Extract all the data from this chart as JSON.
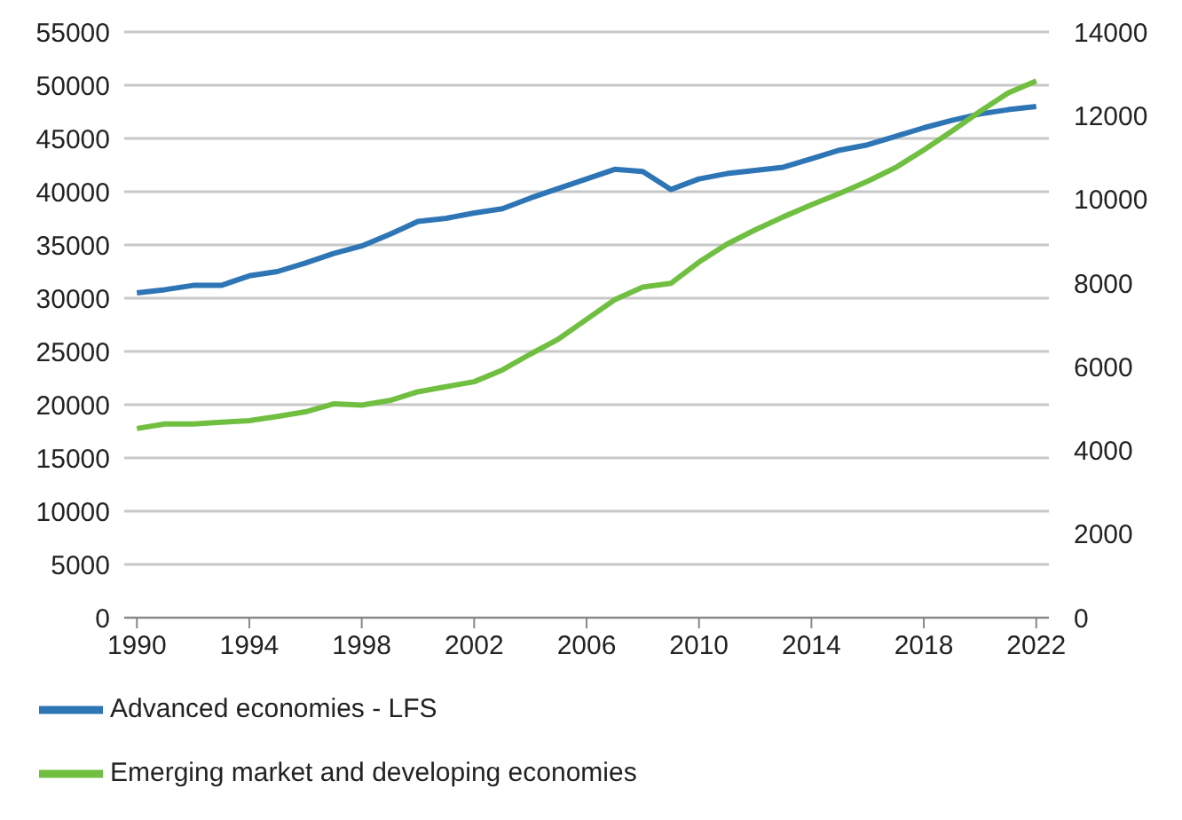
{
  "chart_data": {
    "type": "line",
    "x": [
      1990,
      1991,
      1992,
      1993,
      1994,
      1995,
      1996,
      1997,
      1998,
      1999,
      2000,
      2001,
      2002,
      2003,
      2004,
      2005,
      2006,
      2007,
      2008,
      2009,
      2010,
      2011,
      2012,
      2013,
      2014,
      2015,
      2016,
      2017,
      2018,
      2019,
      2020,
      2021,
      2022
    ],
    "series": [
      {
        "name": "Advanced economies - LFS",
        "color": "#2e75b6",
        "values": [
          30500,
          30800,
          31200,
          31200,
          32100,
          32500,
          33300,
          34200,
          34900,
          36000,
          37200,
          37500,
          38000,
          38400,
          39400,
          40300,
          41200,
          42100,
          41900,
          40200,
          41200,
          41700,
          42000,
          42300,
          43100,
          43900,
          44400,
          45200,
          46000,
          46700,
          47300,
          47700,
          48000
        ]
      },
      {
        "name": "Emerging market and developing economies",
        "color": "#70bf41",
        "axis": "y2",
        "values": [
          4520,
          4630,
          4630,
          4670,
          4710,
          4810,
          4920,
          5110,
          5080,
          5190,
          5400,
          5520,
          5640,
          5920,
          6300,
          6660,
          7130,
          7600,
          7900,
          7990,
          8500,
          8930,
          9270,
          9580,
          9870,
          10140,
          10430,
          10760,
          11180,
          11630,
          12100,
          12540,
          12830
        ]
      }
    ],
    "xlim": [
      1989.55,
      2022.45
    ],
    "xticks": [
      1990,
      1994,
      1998,
      2002,
      2006,
      2010,
      2014,
      2018,
      2022
    ],
    "ylim": [
      0,
      55000
    ],
    "yticks": [
      0,
      5000,
      10000,
      15000,
      20000,
      25000,
      30000,
      35000,
      40000,
      45000,
      50000,
      55000
    ],
    "y2lim": [
      0,
      14000
    ],
    "y2ticks": [
      0,
      2000,
      4000,
      6000,
      8000,
      10000,
      12000,
      14000
    ],
    "grid": "y",
    "legend": "bottom",
    "marker": "none",
    "line_style": "solid"
  }
}
